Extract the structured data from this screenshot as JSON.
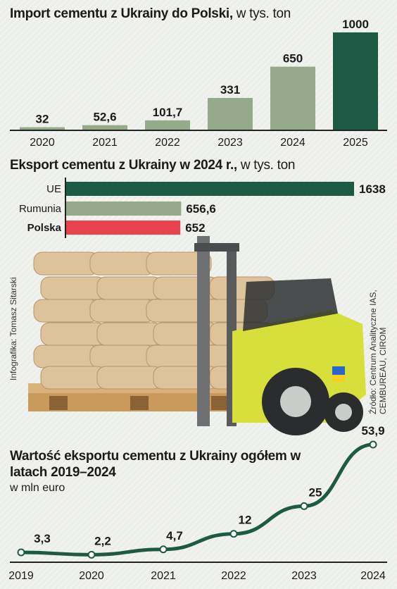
{
  "colors": {
    "dark_green": "#1c5a45",
    "light_green": "#95aa8b",
    "red": "#e8414f",
    "axis": "#222222"
  },
  "chart_data": [
    {
      "type": "bar",
      "title": "Import cementu z Ukrainy do Polski,",
      "subtitle": "w tys. ton",
      "categories": [
        "2020",
        "2021",
        "2022",
        "2023",
        "2024",
        "2025"
      ],
      "values": [
        32,
        52.6,
        101.7,
        331,
        650,
        1000
      ],
      "value_labels": [
        "32",
        "52,6",
        "101,7",
        "331",
        "650",
        "1000"
      ],
      "highlight_index": 5,
      "ylim": [
        0,
        1000
      ]
    },
    {
      "type": "bar",
      "orientation": "horizontal",
      "title": "Eksport cementu z Ukrainy w 2024 r.,",
      "subtitle": "w tys. ton",
      "categories": [
        "UE",
        "Rumunia",
        "Polska"
      ],
      "values": [
        1638,
        656.6,
        652
      ],
      "value_labels": [
        "1638",
        "656,6",
        "652"
      ],
      "xlim": [
        0,
        1638
      ]
    },
    {
      "type": "line",
      "title": "Wartość eksportu cementu z Ukrainy ogółem w latach 2019–2024",
      "subtitle": "w mln euro",
      "x": [
        "2019",
        "2020",
        "2021",
        "2022",
        "2023",
        "2024"
      ],
      "values": [
        3.3,
        2.2,
        4.7,
        12,
        25,
        53.9
      ],
      "value_labels": [
        "3,3",
        "2,2",
        "4,7",
        "12",
        "25",
        "53,9"
      ],
      "ylim": [
        0,
        53.9
      ]
    }
  ],
  "credit": "Infografika: Tomasz Sitarski",
  "source_line1": "Źródło: Centrum Analityczne IAS,",
  "source_line2": "CEMBUREAU, CIROM"
}
